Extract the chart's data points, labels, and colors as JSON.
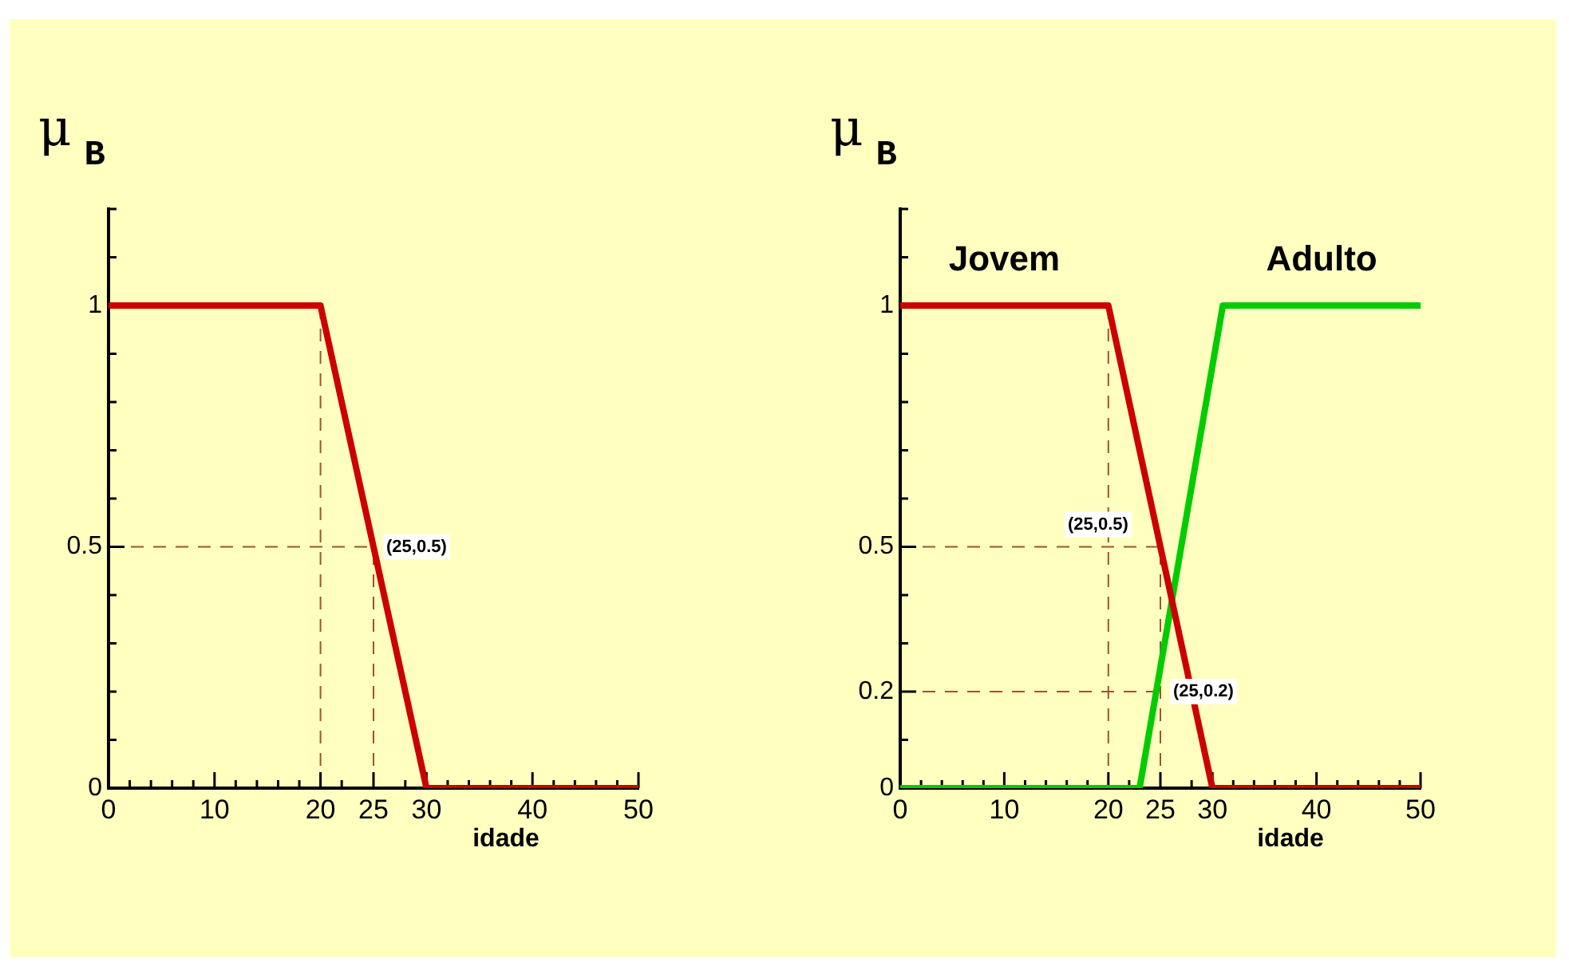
{
  "chart_data": [
    {
      "type": "line",
      "xlabel": "idade",
      "ylabel": "μ$_{B}$",
      "series": [
        {
          "color": "#cc0000",
          "x": [
            0,
            20,
            30,
            50
          ],
          "values": [
            1,
            1,
            0,
            0
          ]
        }
      ],
      "xlim": [
        0,
        50
      ],
      "ylim": [
        0,
        1.2
      ],
      "xticks": [
        0,
        {
          "value": 2,
          "label": null
        },
        {
          "value": 4,
          "label": null
        },
        {
          "value": 6,
          "label": null
        },
        {
          "value": 8,
          "label": null
        },
        10,
        {
          "value": 12,
          "label": null
        },
        {
          "value": 14,
          "label": null
        },
        {
          "value": 16,
          "label": null
        },
        {
          "value": 18,
          "label": null
        },
        20,
        {
          "value": 22,
          "label": null
        },
        25,
        {
          "value": 28,
          "label": null
        },
        30,
        {
          "value": 32,
          "label": null
        },
        {
          "value": 34,
          "label": null
        },
        {
          "value": 36,
          "label": null
        },
        {
          "value": 38,
          "label": null
        },
        40,
        {
          "value": 42,
          "label": null
        },
        {
          "value": 44,
          "label": null
        },
        {
          "value": 46,
          "label": null
        },
        {
          "value": 48,
          "label": null
        },
        50
      ],
      "yticks": [
        0,
        {
          "value": 0.1,
          "label": null
        },
        {
          "value": 0.2,
          "label": null
        },
        {
          "value": 0.3,
          "label": null
        },
        {
          "value": 0.4,
          "label": null
        },
        0.5,
        {
          "value": 0.6,
          "label": null
        },
        {
          "value": 0.7,
          "label": null
        },
        {
          "value": 0.8,
          "label": null
        },
        {
          "value": 0.9,
          "label": null
        },
        1,
        {
          "value": 1.1,
          "label": null
        },
        {
          "value": 1.2,
          "label": null
        }
      ],
      "ref_lines": [
        {
          "axis": "x",
          "value": 20,
          "color": "#a0522d",
          "line_style": "dashed"
        },
        {
          "axis": "x",
          "value": 25,
          "color": "#a0522d",
          "line_style": "dashed"
        },
        {
          "axis": "y",
          "value": 0.5,
          "color": "#a0522d",
          "line_style": "dashed"
        }
      ],
      "annotations": [
        "(25,0.5)"
      ],
      "grid": false,
      "marker": "none",
      "line_style": "solid"
    },
    {
      "type": "line",
      "xlabel": "idade",
      "ylabel": "μ$_{B}$",
      "series": [
        {
          "name": "Jovem",
          "color": "#cc0000",
          "x": [
            0,
            20,
            30,
            50
          ],
          "values": [
            1,
            1,
            0,
            0
          ]
        },
        {
          "name": "Adulto",
          "color": "#00cc00",
          "x": [
            0,
            23,
            31,
            50
          ],
          "values": [
            0,
            0,
            1,
            1
          ]
        }
      ],
      "xlim": [
        0,
        50
      ],
      "ylim": [
        0,
        1.2
      ],
      "xticks": [
        0,
        {
          "value": 2,
          "label": null
        },
        {
          "value": 4,
          "label": null
        },
        {
          "value": 6,
          "label": null
        },
        {
          "value": 8,
          "label": null
        },
        10,
        {
          "value": 12,
          "label": null
        },
        {
          "value": 14,
          "label": null
        },
        {
          "value": 16,
          "label": null
        },
        {
          "value": 18,
          "label": null
        },
        20,
        {
          "value": 22,
          "label": null
        },
        25,
        {
          "value": 28,
          "label": null
        },
        30,
        {
          "value": 32,
          "label": null
        },
        {
          "value": 34,
          "label": null
        },
        {
          "value": 36,
          "label": null
        },
        {
          "value": 38,
          "label": null
        },
        40,
        {
          "value": 42,
          "label": null
        },
        {
          "value": 44,
          "label": null
        },
        {
          "value": 46,
          "label": null
        },
        {
          "value": 48,
          "label": null
        },
        50
      ],
      "yticks": [
        0,
        {
          "value": 0.1,
          "label": null
        },
        0.2,
        {
          "value": 0.3,
          "label": null
        },
        {
          "value": 0.4,
          "label": null
        },
        0.5,
        {
          "value": 0.6,
          "label": null
        },
        {
          "value": 0.7,
          "label": null
        },
        {
          "value": 0.8,
          "label": null
        },
        {
          "value": 0.9,
          "label": null
        },
        1,
        {
          "value": 1.1,
          "label": null
        },
        {
          "value": 1.2,
          "label": null
        }
      ],
      "ref_lines": [
        {
          "axis": "x",
          "value": 20,
          "color": "#a0522d",
          "line_style": "dashed"
        },
        {
          "axis": "x",
          "value": 25,
          "color": "#a0522d",
          "line_style": "dashed"
        },
        {
          "axis": "y",
          "value": 0.5,
          "color": "#a0522d",
          "line_style": "dashed"
        },
        {
          "axis": "y",
          "value": 0.2,
          "color": "#a0522d",
          "line_style": "dashed"
        }
      ],
      "annotations": [
        "(25,0.5)",
        "(25,0.2)"
      ],
      "grid": false,
      "marker": "none",
      "line_style": "solid"
    }
  ]
}
